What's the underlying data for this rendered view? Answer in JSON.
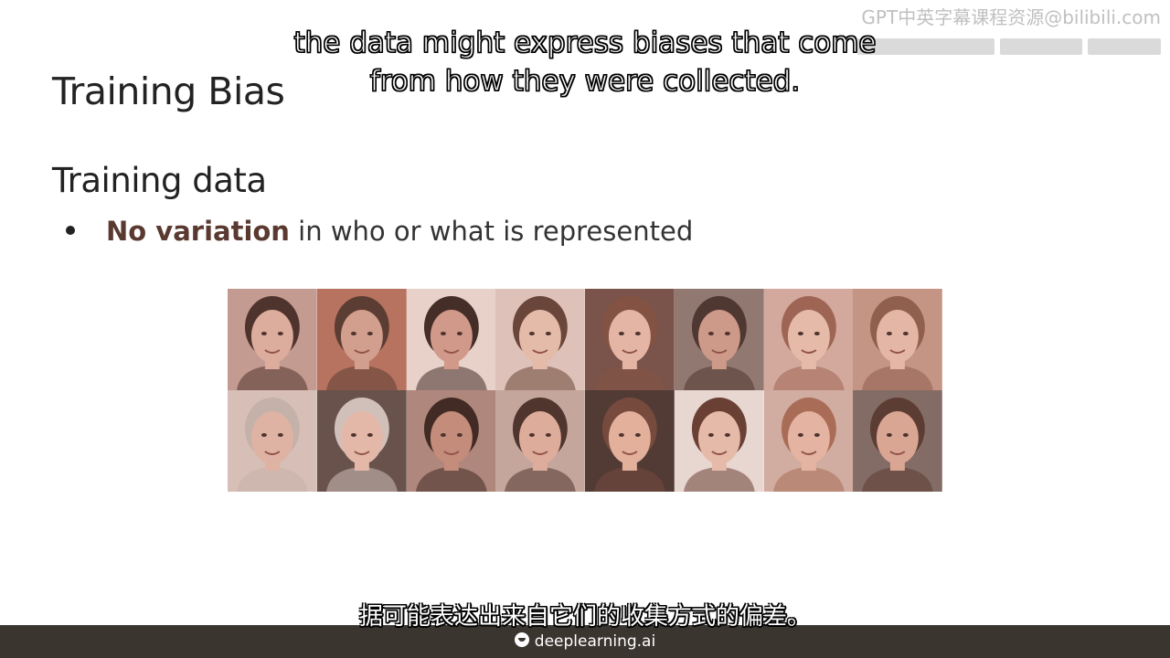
{
  "watermark": {
    "line1": "GPT中英字幕课程资源@bilibili.com"
  },
  "subtitles": {
    "english": "the data might express biases that come from how they were collected.",
    "chinese": "据可能表达出来自它们的收集方式的偏差。"
  },
  "slide": {
    "title": "Training Bias",
    "section_heading": "Training data",
    "bullet": {
      "emphasis": "No variation",
      "rest": " in who or what is represented"
    }
  },
  "face_grid": {
    "rows": 2,
    "columns": 8,
    "tint": "#b07a6a",
    "faces": [
      {
        "skin": "#e6b8a8",
        "hair": "#3a2520",
        "bg": "#c9a39a"
      },
      {
        "skin": "#d9a797",
        "hair": "#4a3028",
        "bg": "#b9725f"
      },
      {
        "skin": "#d8a090",
        "hair": "#2e1e1a",
        "bg": "#f3e4de"
      },
      {
        "skin": "#f0c8b8",
        "hair": "#5b3a30",
        "bg": "#e8d2cb"
      },
      {
        "skin": "#f0c2b2",
        "hair": "#7a4a3a",
        "bg": "#6e4c45"
      },
      {
        "skin": "#d4a090",
        "hair": "#3a2a26",
        "bg": "#8a7872"
      },
      {
        "skin": "#f2c8b8",
        "hair": "#9a6050",
        "bg": "#d9b4a8"
      },
      {
        "skin": "#f0c4b4",
        "hair": "#8a5a48",
        "bg": "#c89a8c"
      },
      {
        "skin": "#e8c0b0",
        "hair": "#c8beb8",
        "bg": "#e0cfc8"
      },
      {
        "skin": "#f0c6b6",
        "hair": "#d8d0cc",
        "bg": "#5a4a46"
      },
      {
        "skin": "#c8907e",
        "hair": "#2a1a16",
        "bg": "#b08a80"
      },
      {
        "skin": "#e8b8a6",
        "hair": "#3a2620",
        "bg": "#c9b0a8"
      },
      {
        "skin": "#eebca8",
        "hair": "#6a4034",
        "bg": "#3e2e2a"
      },
      {
        "skin": "#f2c8b8",
        "hair": "#5a3428",
        "bg": "#f5ebe8"
      },
      {
        "skin": "#f0c0ae",
        "hair": "#a86a54",
        "bg": "#d8b8ac"
      },
      {
        "skin": "#e2b09e",
        "hair": "#4a3028",
        "bg": "#7a6a66"
      }
    ]
  },
  "brand": {
    "name": "deeplearning.ai"
  }
}
